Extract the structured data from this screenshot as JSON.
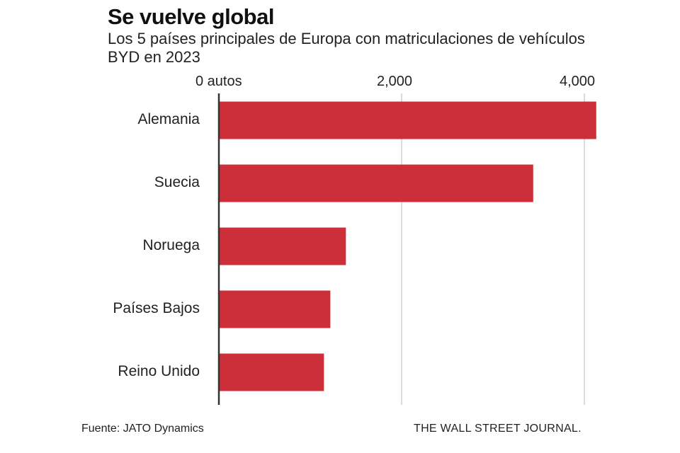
{
  "chart_data": {
    "type": "bar",
    "orientation": "horizontal",
    "title": "Se vuelve global",
    "subtitle": "Los 5 países principales de Europa con matriculaciones de vehículos BYD en 2023",
    "categories": [
      "Alemania",
      "Suecia",
      "Noruega",
      "Países Bajos",
      "Reino Unido"
    ],
    "values": [
      4130,
      3440,
      1390,
      1220,
      1150
    ],
    "xlim": [
      0,
      4200
    ],
    "xticks": [
      0,
      2000,
      4000
    ],
    "xtick_labels": [
      "0 autos",
      "2,000",
      "4,000"
    ],
    "grid": true,
    "bar_color": "#cc2f3a",
    "source": "Fuente: JATO Dynamics",
    "credit": "THE WALL STREET JOURNAL."
  }
}
